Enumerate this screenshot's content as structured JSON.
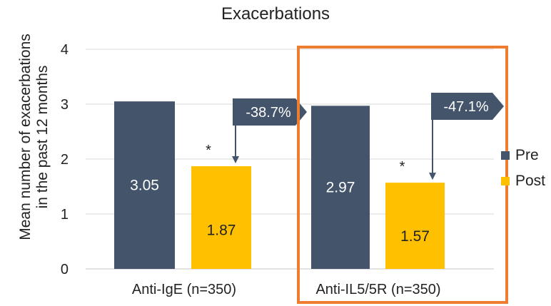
{
  "chart_data": {
    "type": "bar",
    "title": "Exacerbations",
    "ylabel_lines": [
      "Mean number of exacerbations",
      "in the  past 12 months"
    ],
    "categories": [
      "Anti-IgE (n=350)",
      "Anti-IL5/5R (n=350)"
    ],
    "series": [
      {
        "name": "Pre",
        "values": [
          3.05,
          2.97
        ],
        "labels": [
          "3.05",
          "2.97"
        ]
      },
      {
        "name": "Post",
        "values": [
          1.87,
          1.57
        ],
        "labels": [
          "1.87",
          "1.57"
        ]
      }
    ],
    "ylim": [
      0,
      4
    ],
    "yticks": [
      "0",
      "1",
      "2",
      "3",
      "4"
    ],
    "grid": true,
    "legend_position": "right",
    "significance_markers": [
      "*",
      "*"
    ],
    "change_labels": [
      "-38.7%",
      "-47.1%"
    ],
    "highlighted_category": "Anti-IL5/5R (n=350)"
  },
  "colors": {
    "pre": "#44546a",
    "post": "#ffc000",
    "highlight_box": "#ed7d31",
    "gridline": "#d9d9d9",
    "text": "#222222"
  }
}
